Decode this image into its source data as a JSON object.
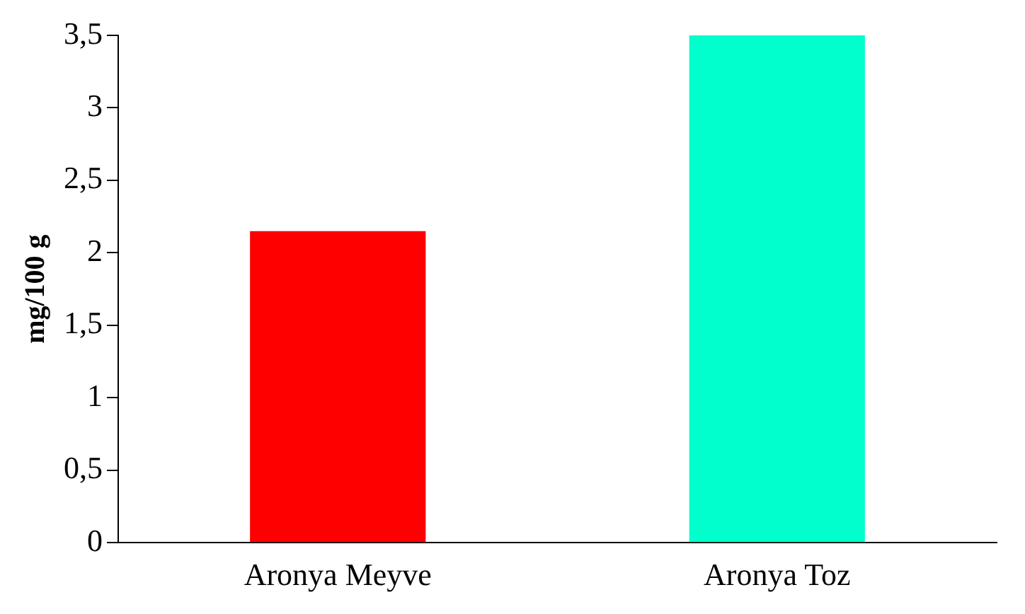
{
  "chart_data": {
    "type": "bar",
    "ylabel": "mg/100 g",
    "categories": [
      "Aronya Meyve",
      "Aronya Toz"
    ],
    "values": [
      2.15,
      3.5
    ],
    "colors": [
      "#ff0000",
      "#00ffcc"
    ],
    "ylim": [
      0,
      3.5
    ],
    "yticks": [
      0,
      {
        "value": 0.5,
        "label": "0,5"
      },
      1,
      {
        "value": 1.5,
        "label": "1,5"
      },
      2,
      {
        "value": 2.5,
        "label": "2,5"
      },
      3,
      {
        "value": 3.5,
        "label": "3,5"
      }
    ],
    "grid": false,
    "legend": false
  }
}
